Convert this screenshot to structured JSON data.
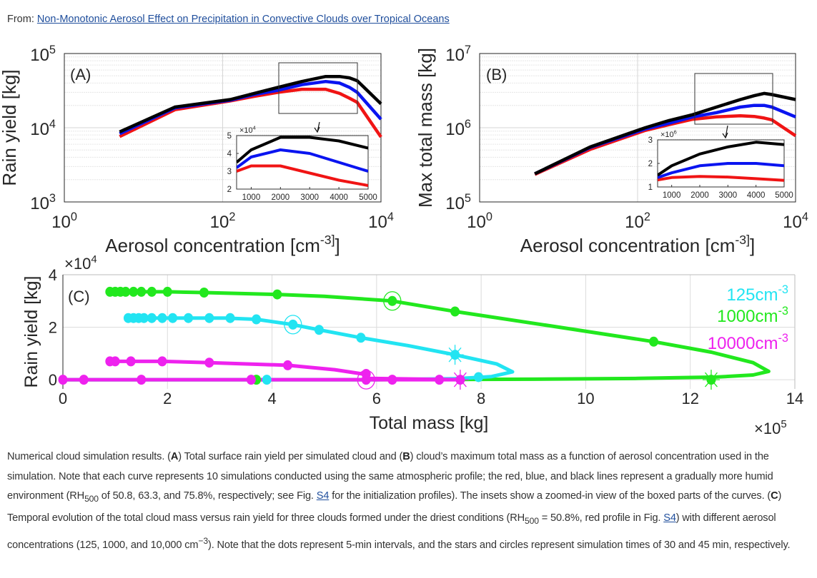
{
  "header": {
    "from_label": "From:",
    "article_link": "Non-Monotonic Aerosol Effect on Precipitation in Convective Clouds over Tropical Oceans"
  },
  "colors": {
    "black": "#000000",
    "blue": "#0a14f0",
    "red": "#f01414",
    "green": "#22e81e",
    "cyan": "#22e4f2",
    "magenta": "#ee22ee",
    "link": "#1f4e9c"
  },
  "chart_data": [
    {
      "panel": "(A)",
      "type": "line",
      "xscale": "log",
      "yscale": "log",
      "xlabel": "Aerosol concentration [cm^-3]",
      "ylabel": "Rain yield [kg]",
      "xlim": [
        1,
        10000
      ],
      "ylim": [
        1000,
        100000
      ],
      "xticks": [
        {
          "b": "10",
          "e": "0",
          "v": 1
        },
        {
          "b": "10",
          "e": "2",
          "v": 100
        },
        {
          "b": "10",
          "e": "4",
          "v": 10000
        }
      ],
      "yticks": [
        {
          "b": "10",
          "e": "3",
          "v": 1000
        },
        {
          "b": "10",
          "e": "4",
          "v": 10000
        },
        {
          "b": "10",
          "e": "5",
          "v": 100000
        }
      ],
      "grid": true,
      "x": [
        5,
        25,
        125,
        250,
        500,
        1000,
        2000,
        3000,
        4000,
        5000,
        10000
      ],
      "series": [
        {
          "name": "RH500 50.8%",
          "color": "red",
          "values": [
            7600,
            17500,
            23000,
            26500,
            30000,
            33000,
            33000,
            29000,
            25000,
            22000,
            7500
          ]
        },
        {
          "name": "RH500 63.3%",
          "color": "blue",
          "values": [
            8300,
            18500,
            23500,
            28000,
            32000,
            38000,
            42000,
            40000,
            35000,
            30000,
            13000
          ]
        },
        {
          "name": "RH500 75.8%",
          "color": "black",
          "values": [
            8800,
            19000,
            24000,
            29000,
            35000,
            42000,
            49000,
            49000,
            47000,
            43000,
            21000
          ]
        }
      ],
      "inset": {
        "xlim": [
          500,
          5000
        ],
        "ylim": [
          20000,
          50000
        ],
        "multiplier": {
          "b": "×10",
          "e": "4"
        },
        "xticks": [
          "1000",
          "2000",
          "3000",
          "4000",
          "5000"
        ],
        "xtick_values": [
          1000,
          2000,
          3000,
          4000,
          5000
        ],
        "yticks": [
          "2",
          "3",
          "4",
          "5"
        ],
        "ytick_values": [
          20000,
          30000,
          40000,
          50000
        ]
      }
    },
    {
      "panel": "(B)",
      "type": "line",
      "xscale": "log",
      "yscale": "log",
      "xlabel": "Aerosol concentration [cm^-3]",
      "ylabel": "Max total mass [kg]",
      "xlim": [
        1,
        10000
      ],
      "ylim": [
        100000,
        10000000
      ],
      "xticks": [
        {
          "b": "10",
          "e": "0",
          "v": 1
        },
        {
          "b": "10",
          "e": "2",
          "v": 100
        },
        {
          "b": "10",
          "e": "4",
          "v": 10000
        }
      ],
      "yticks": [
        {
          "b": "10",
          "e": "5",
          "v": 100000
        },
        {
          "b": "10",
          "e": "6",
          "v": 1000000
        },
        {
          "b": "10",
          "e": "7",
          "v": 10000000
        }
      ],
      "grid": true,
      "x": [
        5,
        25,
        125,
        250,
        500,
        1000,
        2000,
        3000,
        4000,
        5000,
        10000
      ],
      "series": [
        {
          "name": "RH500 50.8%",
          "color": "red",
          "values": [
            235000,
            510000,
            920000,
            1100000,
            1300000,
            1400000,
            1450000,
            1420000,
            1350000,
            1280000,
            780000
          ]
        },
        {
          "name": "RH500 63.3%",
          "color": "blue",
          "values": [
            240000,
            540000,
            960000,
            1150000,
            1400000,
            1600000,
            1900000,
            2000000,
            2000000,
            1900000,
            1400000
          ]
        },
        {
          "name": "RH500 75.8%",
          "color": "black",
          "values": [
            240000,
            550000,
            1000000,
            1250000,
            1500000,
            1900000,
            2400000,
            2700000,
            2900000,
            2800000,
            2400000
          ]
        }
      ],
      "inset": {
        "xlim": [
          500,
          5000
        ],
        "ylim": [
          1000000,
          3000000
        ],
        "multiplier": {
          "b": "×10",
          "e": "6"
        },
        "xticks": [
          "1000",
          "2000",
          "3000",
          "4000",
          "5000"
        ],
        "xtick_values": [
          1000,
          2000,
          3000,
          4000,
          5000
        ],
        "yticks": [
          "1",
          "2",
          "3"
        ],
        "ytick_values": [
          1000000,
          2000000,
          3000000
        ]
      }
    },
    {
      "panel": "(C)",
      "type": "line",
      "xlabel": "Total mass [kg]",
      "ylabel": "Rain yield [kg]",
      "x_multiplier": {
        "b": "×10",
        "e": "5"
      },
      "y_multiplier": {
        "b": "×10",
        "e": "4"
      },
      "xlim": [
        0,
        14
      ],
      "ylim": [
        -0.35,
        4
      ],
      "xticks": [
        "0",
        "2",
        "4",
        "6",
        "8",
        "10",
        "12",
        "14"
      ],
      "xtick_values": [
        0,
        2,
        4,
        6,
        8,
        10,
        12,
        14
      ],
      "yticks": [
        "0",
        "2",
        "4"
      ],
      "ytick_values": [
        0,
        2,
        4
      ],
      "grid": true,
      "series": [
        {
          "name": "1000cm^-3",
          "legend": "1000cm",
          "legend_exp": "-3",
          "color": "green",
          "path": [
            [
              0,
              0
            ],
            [
              6,
              0
            ],
            [
              9,
              0.02
            ],
            [
              11,
              0.05
            ],
            [
              12.5,
              0.1
            ],
            [
              13.2,
              0.18
            ],
            [
              13.5,
              0.32
            ],
            [
              13.2,
              0.65
            ],
            [
              12.4,
              1.05
            ],
            [
              11.3,
              1.45
            ],
            [
              9.5,
              2.0
            ],
            [
              7.5,
              2.6
            ],
            [
              6.3,
              3.0
            ],
            [
              5,
              3.18
            ],
            [
              4.1,
              3.25
            ],
            [
              2.7,
              3.32
            ],
            [
              2,
              3.35
            ],
            [
              0.9,
              3.35
            ]
          ],
          "dots": [
            [
              0.9,
              3.35
            ],
            [
              1.0,
              3.35
            ],
            [
              1.1,
              3.35
            ],
            [
              1.2,
              3.35
            ],
            [
              1.35,
              3.35
            ],
            [
              1.5,
              3.35
            ],
            [
              1.7,
              3.35
            ],
            [
              2.0,
              3.35
            ],
            [
              2.7,
              3.32
            ],
            [
              4.1,
              3.25
            ],
            [
              7.5,
              2.6
            ],
            [
              11.3,
              1.45
            ],
            [
              3.7,
              0
            ]
          ],
          "star": [
            12.4,
            0
          ],
          "circle": [
            6.3,
            3.0
          ]
        },
        {
          "name": "125cm^-3",
          "legend": "125cm",
          "legend_exp": "-3",
          "color": "cyan",
          "path": [
            [
              0,
              0
            ],
            [
              6,
              0
            ],
            [
              7.5,
              0.04
            ],
            [
              8.2,
              0.12
            ],
            [
              8.6,
              0.3
            ],
            [
              8.3,
              0.6
            ],
            [
              7.5,
              0.95
            ],
            [
              6.6,
              1.3
            ],
            [
              5.7,
              1.6
            ],
            [
              4.9,
              1.9
            ],
            [
              4.4,
              2.1
            ],
            [
              3.7,
              2.3
            ],
            [
              3.1,
              2.35
            ],
            [
              1.2,
              2.35
            ]
          ],
          "dots": [
            [
              1.25,
              2.35
            ],
            [
              1.35,
              2.35
            ],
            [
              1.45,
              2.35
            ],
            [
              1.55,
              2.35
            ],
            [
              1.7,
              2.35
            ],
            [
              1.9,
              2.35
            ],
            [
              2.1,
              2.35
            ],
            [
              2.4,
              2.35
            ],
            [
              2.8,
              2.35
            ],
            [
              3.2,
              2.35
            ],
            [
              3.7,
              2.3
            ],
            [
              4.9,
              1.9
            ],
            [
              5.7,
              1.6
            ],
            [
              3.9,
              0
            ],
            [
              7.95,
              0.1
            ]
          ],
          "star": [
            7.5,
            0.95
          ],
          "circle": [
            4.4,
            2.1
          ]
        },
        {
          "name": "10000cm^-3",
          "legend": "10000cm",
          "legend_exp": "-3",
          "color": "magenta",
          "path": [
            [
              0,
              0
            ],
            [
              7.6,
              0
            ],
            [
              5.85,
              0.05
            ],
            [
              5.8,
              0.2
            ],
            [
              5.2,
              0.38
            ],
            [
              4.3,
              0.55
            ],
            [
              2.8,
              0.65
            ],
            [
              1.9,
              0.7
            ],
            [
              0.9,
              0.7
            ]
          ],
          "dots": [
            [
              0.9,
              0.7
            ],
            [
              1.0,
              0.7
            ],
            [
              1.3,
              0.7
            ],
            [
              1.9,
              0.7
            ],
            [
              2.8,
              0.65
            ],
            [
              4.3,
              0.55
            ],
            [
              5.8,
              0.22
            ],
            [
              0,
              0
            ],
            [
              0.4,
              0
            ],
            [
              1.5,
              0
            ],
            [
              3.6,
              0
            ],
            [
              6.3,
              0
            ],
            [
              7.2,
              0
            ]
          ],
          "star": [
            7.6,
            0
          ],
          "circle": [
            5.8,
            0
          ]
        }
      ]
    }
  ],
  "caption": [
    {
      "t": "Numerical cloud simulation results. ("
    },
    {
      "b": "A"
    },
    {
      "t": ") Total surface rain yield per simulated cloud and ("
    },
    {
      "b": "B"
    },
    {
      "t": ") cloud’s maximum total mass as a function of aerosol concentration used in the simulation. Note that each curve represents 10 simulations conducted using the same atmospheric profile; the red, blue, and black lines represent a gradually more humid environment (RH"
    },
    {
      "sub": "500"
    },
    {
      "t": " of 50.8, 63.3, and 75.8%, respectively; see Fig. "
    },
    {
      "link": "S4"
    },
    {
      "t": " for the initialization profiles). The insets show a zoomed-in view of the boxed parts of the curves. ("
    },
    {
      "b": "C"
    },
    {
      "t": ") Temporal evolution of the total cloud mass versus rain yield for three clouds formed under the driest conditions (RH"
    },
    {
      "sub": "500"
    },
    {
      "t": " = 50.8%, red profile in Fig. "
    },
    {
      "link": "S4"
    },
    {
      "t": ") with different aerosol concentrations (125, 1000, and 10,000 cm"
    },
    {
      "sup": "−3"
    },
    {
      "t": "). Note that the dots represent 5-min intervals, and the stars and circles represent simulation times of 30 and 45 min, respectively."
    }
  ]
}
